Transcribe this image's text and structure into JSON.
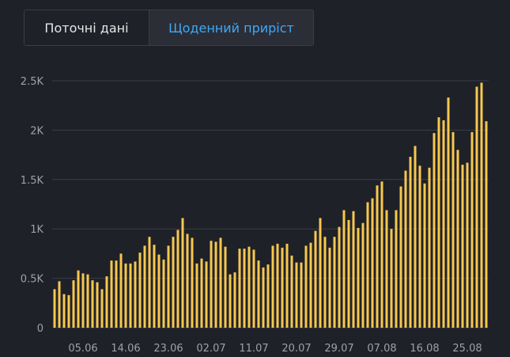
{
  "tabs": {
    "current_label": "Поточні дані",
    "daily_label": "Щоденний приріст"
  },
  "colors": {
    "bar": "#f7c84e",
    "grid": "#3a3d47",
    "active_tab": "#3fa9f5",
    "background": "#1f2129"
  },
  "chart_data": {
    "type": "bar",
    "title": "",
    "xlabel": "",
    "ylabel": "",
    "ylim": [
      0,
      2500
    ],
    "y_ticks": [
      {
        "value": 0,
        "label": "0"
      },
      {
        "value": 500,
        "label": "0.5K"
      },
      {
        "value": 1000,
        "label": "1K"
      },
      {
        "value": 1500,
        "label": "1.5K"
      },
      {
        "value": 2000,
        "label": "2K"
      },
      {
        "value": 2500,
        "label": "2.5K"
      }
    ],
    "x_tick_labels": [
      {
        "index": 6,
        "label": "05.06"
      },
      {
        "index": 15,
        "label": "14.06"
      },
      {
        "index": 24,
        "label": "23.06"
      },
      {
        "index": 33,
        "label": "02.07"
      },
      {
        "index": 42,
        "label": "11.07"
      },
      {
        "index": 51,
        "label": "20.07"
      },
      {
        "index": 60,
        "label": "29.07"
      },
      {
        "index": 69,
        "label": "07.08"
      },
      {
        "index": 78,
        "label": "16.08"
      },
      {
        "index": 87,
        "label": "25.08"
      }
    ],
    "grid": true,
    "values": [
      390,
      470,
      340,
      330,
      480,
      580,
      550,
      540,
      480,
      460,
      390,
      520,
      680,
      680,
      750,
      650,
      650,
      670,
      760,
      830,
      920,
      840,
      740,
      690,
      830,
      920,
      990,
      1110,
      950,
      910,
      650,
      700,
      670,
      880,
      870,
      910,
      820,
      540,
      560,
      800,
      800,
      820,
      790,
      680,
      610,
      640,
      830,
      850,
      810,
      850,
      730,
      660,
      660,
      830,
      860,
      980,
      1110,
      920,
      810,
      920,
      1020,
      1190,
      1090,
      1180,
      1010,
      1060,
      1270,
      1310,
      1440,
      1480,
      1190,
      1000,
      1190,
      1430,
      1590,
      1730,
      1840,
      1640,
      1460,
      1620,
      1970,
      2130,
      2100,
      2330,
      1980,
      1800,
      1650,
      1670,
      1980,
      2440,
      2480,
      2090
    ]
  }
}
